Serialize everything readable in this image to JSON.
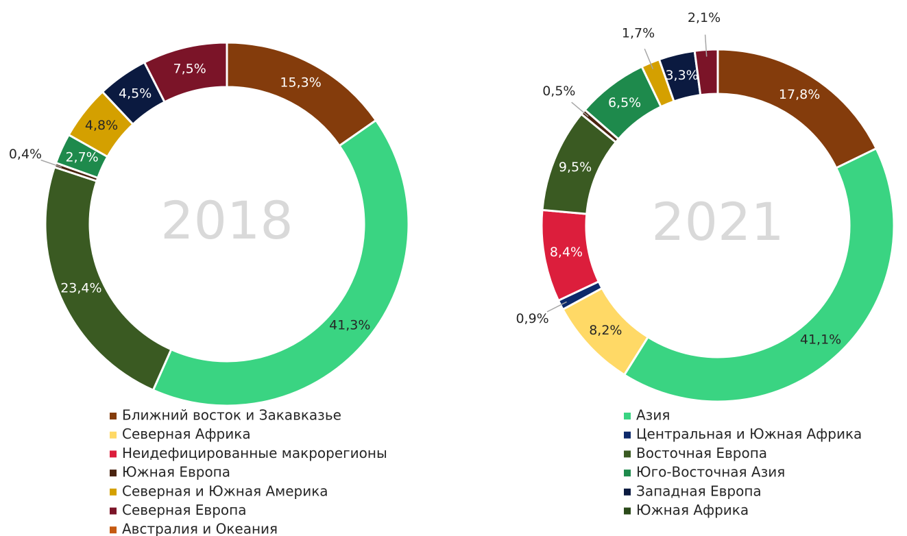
{
  "chart_data": [
    {
      "type": "donut",
      "title": "2018",
      "categories": [
        "Ближний восток и Закавказье",
        "Азия",
        "Восточная Европа",
        "Южная Европа",
        "Юго-Восточная Азия",
        "Северная и Южная Америка",
        "Западная Европа",
        "Северная Европа"
      ],
      "values": [
        15.3,
        41.3,
        23.4,
        0.4,
        2.7,
        4.8,
        4.5,
        7.5
      ],
      "value_labels": [
        "15,3%",
        "41,3%",
        "23,4%",
        "0,4%",
        "2,7%",
        "4,8%",
        "4,5%",
        "7,5%"
      ]
    },
    {
      "type": "donut",
      "title": "2021",
      "categories": [
        "Ближний восток и Закавказье",
        "Азия",
        "Северная Африка",
        "Центральная и Южная Африка",
        "Неидефицированные макрорегионы",
        "Восточная Европа",
        "Южная Европа",
        "Юго-Восточная Азия",
        "Северная и Южная Америка",
        "Западная Европа",
        "Северная Европа"
      ],
      "values": [
        17.8,
        41.1,
        8.2,
        0.9,
        8.4,
        9.5,
        0.5,
        6.5,
        1.7,
        3.3,
        2.1
      ],
      "value_labels": [
        "17,8%",
        "41,1%",
        "8,2%",
        "0,9%",
        "8,4%",
        "9,5%",
        "0,5%",
        "6,5%",
        "1,7%",
        "3,3%",
        "2,1%"
      ]
    }
  ],
  "legend": [
    {
      "name": "Ближний восток и Закавказье",
      "color": "#843c0c"
    },
    {
      "name": "Северная Африка",
      "color": "#ffd966"
    },
    {
      "name": "Неидефицированные макрорегионы",
      "color": "#dc1e3c"
    },
    {
      "name": "Южная Европа",
      "color": "#4a2410"
    },
    {
      "name": "Северная и Южная Америка",
      "color": "#d4a000"
    },
    {
      "name": "Северная Европа",
      "color": "#7b1428"
    },
    {
      "name": "Австралия и Океания",
      "color": "#c55a11"
    },
    {
      "name": "Азия",
      "color": "#3ad482"
    },
    {
      "name": "Центральная и Южная Африка",
      "color": "#0d2a6b"
    },
    {
      "name": "Восточная Европа",
      "color": "#3a5a22"
    },
    {
      "name": "Юго-Восточная Азия",
      "color": "#1e8a4c"
    },
    {
      "name": "Западная Европа",
      "color": "#0b1a40"
    },
    {
      "name": "Южная Африка",
      "color": "#2b4a1a"
    }
  ]
}
